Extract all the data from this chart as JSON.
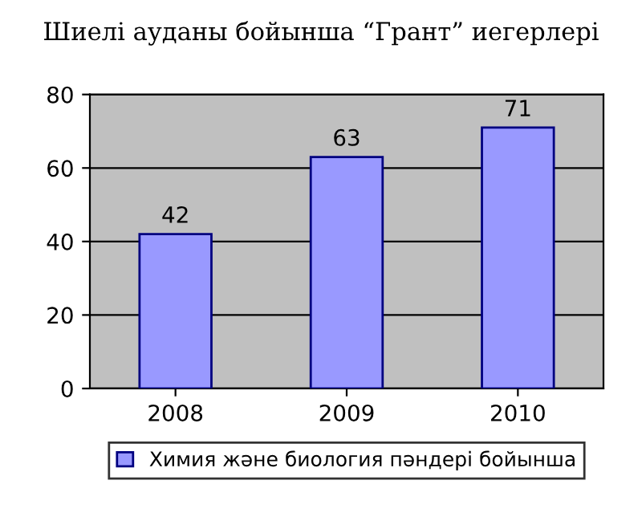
{
  "chart_data": {
    "type": "bar",
    "title": "Шиелі ауданы бойынша “Грант” иегерлері",
    "categories": [
      "2008",
      "2009",
      "2010"
    ],
    "series": [
      {
        "name": "Химия және биология пәндері бойынша",
        "color": "#9999ff",
        "values": [
          42,
          63,
          71
        ]
      }
    ],
    "ylim": [
      0,
      80
    ],
    "yticks": [
      0,
      20,
      40,
      60,
      80
    ],
    "grid": "y",
    "legend": "bottom",
    "data_labels": true
  }
}
